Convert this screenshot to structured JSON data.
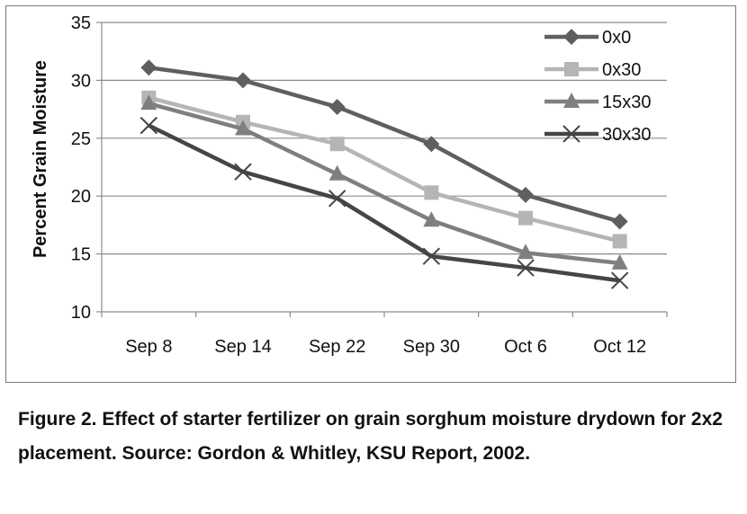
{
  "chart_data": {
    "type": "line",
    "categories": [
      "Sep 8",
      "Sep 14",
      "Sep 22",
      "Sep 30",
      "Oct 6",
      "Oct 12"
    ],
    "ylabel": "Percent Grain Moisture",
    "xlabel": "",
    "ylim": [
      10,
      35
    ],
    "yticks": [
      10,
      15,
      20,
      25,
      30,
      35
    ],
    "grid": true,
    "legend_position": "top-right",
    "series": [
      {
        "name": "0x0",
        "color": "#5f5f5f",
        "marker": "diamond",
        "values": [
          31.1,
          30.0,
          27.7,
          24.5,
          20.1,
          17.8
        ]
      },
      {
        "name": "0x30",
        "color": "#b5b5b5",
        "marker": "square",
        "values": [
          28.5,
          26.4,
          24.5,
          20.3,
          18.1,
          16.1
        ]
      },
      {
        "name": "15x30",
        "color": "#7f7f7f",
        "marker": "triangle",
        "values": [
          28.0,
          25.8,
          21.9,
          17.9,
          15.1,
          14.2
        ]
      },
      {
        "name": "30x30",
        "color": "#454545",
        "marker": "x",
        "values": [
          26.1,
          22.1,
          19.8,
          14.8,
          13.8,
          12.7
        ]
      }
    ]
  },
  "caption": "Figure 2. Effect of starter fertilizer on grain sorghum moisture drydown for 2x2 placement. Source: Gordon & Whitley, KSU Report, 2002."
}
